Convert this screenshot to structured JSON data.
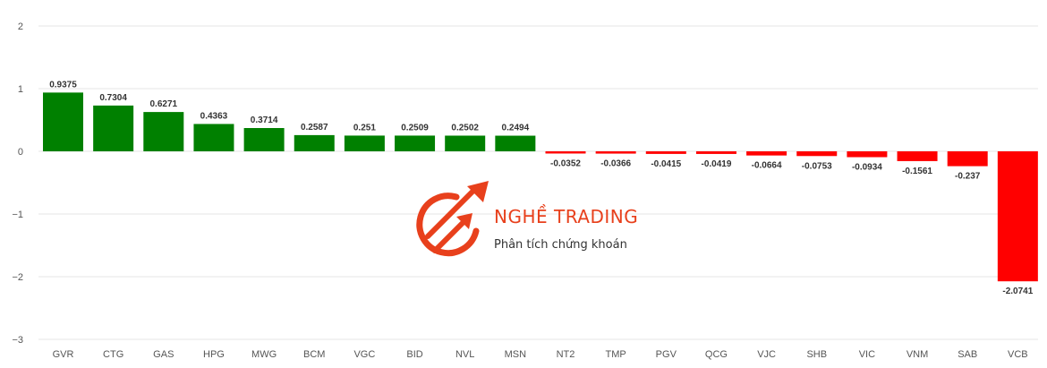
{
  "chart_data": {
    "type": "bar",
    "title": "",
    "xlabel": "",
    "ylabel": "",
    "ylim": [
      -3,
      2
    ],
    "yticks": [
      2,
      1,
      0,
      -1,
      -2,
      -3
    ],
    "grid": true,
    "legend": "none",
    "positive_color": "#008000",
    "negative_color": "#ff0000",
    "categories": [
      "GVR",
      "CTG",
      "GAS",
      "HPG",
      "MWG",
      "BCM",
      "VGC",
      "BID",
      "NVL",
      "MSN",
      "NT2",
      "TMP",
      "PGV",
      "QCG",
      "VJC",
      "SHB",
      "VIC",
      "VNM",
      "SAB",
      "VCB"
    ],
    "values": [
      0.9375,
      0.7304,
      0.6271,
      0.4363,
      0.3714,
      0.2587,
      0.251,
      0.2509,
      0.2502,
      0.2494,
      -0.0352,
      -0.0366,
      -0.0415,
      -0.0419,
      -0.0664,
      -0.0753,
      -0.0934,
      -0.1561,
      -0.237,
      -2.0741
    ],
    "labels": [
      "0.9375",
      "0.7304",
      "0.6271",
      "0.4363",
      "0.3714",
      "0.2587",
      "0.251",
      "0.2509",
      "0.2502",
      "0.2494",
      "-0.0352",
      "-0.0366",
      "-0.0415",
      "-0.0419",
      "-0.0664",
      "-0.0753",
      "-0.0934",
      "-0.1561",
      "-0.237",
      "-2.0741"
    ]
  },
  "watermark": {
    "brand": "NGHỀ TRADING",
    "tagline": "Phân tích chứng khoán",
    "brand_color": "#e8401c",
    "icon": "trend-arrows-logo"
  }
}
